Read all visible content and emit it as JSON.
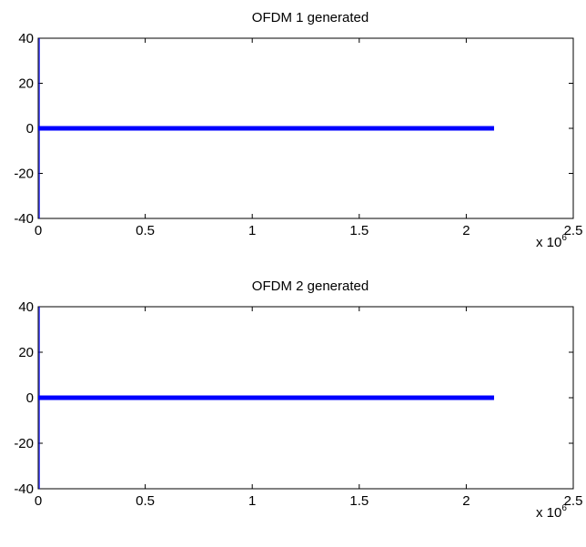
{
  "chart_data": [
    {
      "type": "line",
      "title": "OFDM 1 generated",
      "xlabel": "",
      "ylabel": "",
      "xlim": [
        0,
        2.5
      ],
      "ylim": [
        -40,
        40
      ],
      "x_multiplier_label": {
        "base": "x 10",
        "exponent": "6"
      },
      "x_ticks": [
        0,
        0.5,
        1,
        1.5,
        2,
        2.5
      ],
      "x_tick_labels": [
        "0",
        "0.5",
        "1",
        "1.5",
        "2",
        "2.5"
      ],
      "y_ticks": [
        40,
        20,
        0,
        -20,
        -40
      ],
      "y_tick_labels": [
        "40",
        "20",
        "0",
        "-20",
        "-40"
      ],
      "grid": false,
      "series": [
        {
          "color": "#0000ff",
          "x_range": [
            0,
            2.13
          ],
          "y_band": [
            -0.6,
            0.6
          ],
          "spike": {
            "x": 0.005,
            "ymin": -40,
            "ymax": 40
          }
        }
      ]
    },
    {
      "type": "line",
      "title": "OFDM 2 generated",
      "xlabel": "",
      "ylabel": "",
      "xlim": [
        0,
        2.5
      ],
      "ylim": [
        -40,
        40
      ],
      "x_multiplier_label": {
        "base": "x 10",
        "exponent": "6"
      },
      "x_ticks": [
        0,
        0.5,
        1,
        1.5,
        2,
        2.5
      ],
      "x_tick_labels": [
        "0",
        "0.5",
        "1",
        "1.5",
        "2",
        "2.5"
      ],
      "y_ticks": [
        40,
        20,
        0,
        -20,
        -40
      ],
      "y_tick_labels": [
        "40",
        "20",
        "0",
        "-20",
        "-40"
      ],
      "grid": false,
      "series": [
        {
          "color": "#0000ff",
          "x_range": [
            0,
            2.13
          ],
          "y_band": [
            -0.6,
            0.6
          ],
          "spike": {
            "x": 0.005,
            "ymin": -40,
            "ymax": 40
          }
        }
      ]
    }
  ]
}
